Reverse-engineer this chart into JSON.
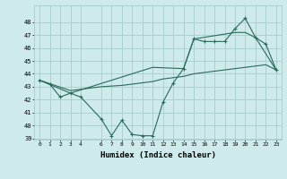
{
  "line1_x": [
    0,
    1,
    2,
    3,
    4,
    6,
    7,
    8,
    9,
    10,
    11,
    12,
    13,
    14,
    15,
    16,
    17,
    18,
    19,
    20,
    21,
    22,
    23
  ],
  "line1_y": [
    43.5,
    43.2,
    42.2,
    42.5,
    42.2,
    40.5,
    39.2,
    40.4,
    39.3,
    39.2,
    39.2,
    41.8,
    43.3,
    44.4,
    46.7,
    46.5,
    46.5,
    46.5,
    47.5,
    48.3,
    46.8,
    46.3,
    44.3
  ],
  "line2_x": [
    0,
    3,
    6,
    8,
    10,
    11,
    12,
    13,
    14,
    15,
    16,
    17,
    18,
    19,
    20,
    21,
    22,
    23
  ],
  "line2_y": [
    43.5,
    42.7,
    43.0,
    43.1,
    43.3,
    43.4,
    43.6,
    43.7,
    43.8,
    44.0,
    44.1,
    44.2,
    44.3,
    44.4,
    44.5,
    44.6,
    44.7,
    44.3
  ],
  "line3_x": [
    0,
    3,
    11,
    14,
    15,
    19,
    20,
    21,
    23
  ],
  "line3_y": [
    43.5,
    42.5,
    44.5,
    44.4,
    46.7,
    47.2,
    47.2,
    46.8,
    44.3
  ],
  "color": "#286b5a",
  "bg_color": "#ceeaea",
  "grid_color": "#a8cccc",
  "xlabel": "Humidex (Indice chaleur)",
  "ylim": [
    39,
    49
  ],
  "xlim": [
    -0.5,
    23.5
  ],
  "yticks": [
    39,
    40,
    41,
    42,
    43,
    44,
    45,
    46,
    47,
    48
  ],
  "xticks": [
    0,
    1,
    2,
    3,
    4,
    6,
    7,
    8,
    9,
    10,
    11,
    12,
    13,
    14,
    15,
    16,
    17,
    18,
    19,
    20,
    21,
    22,
    23
  ]
}
